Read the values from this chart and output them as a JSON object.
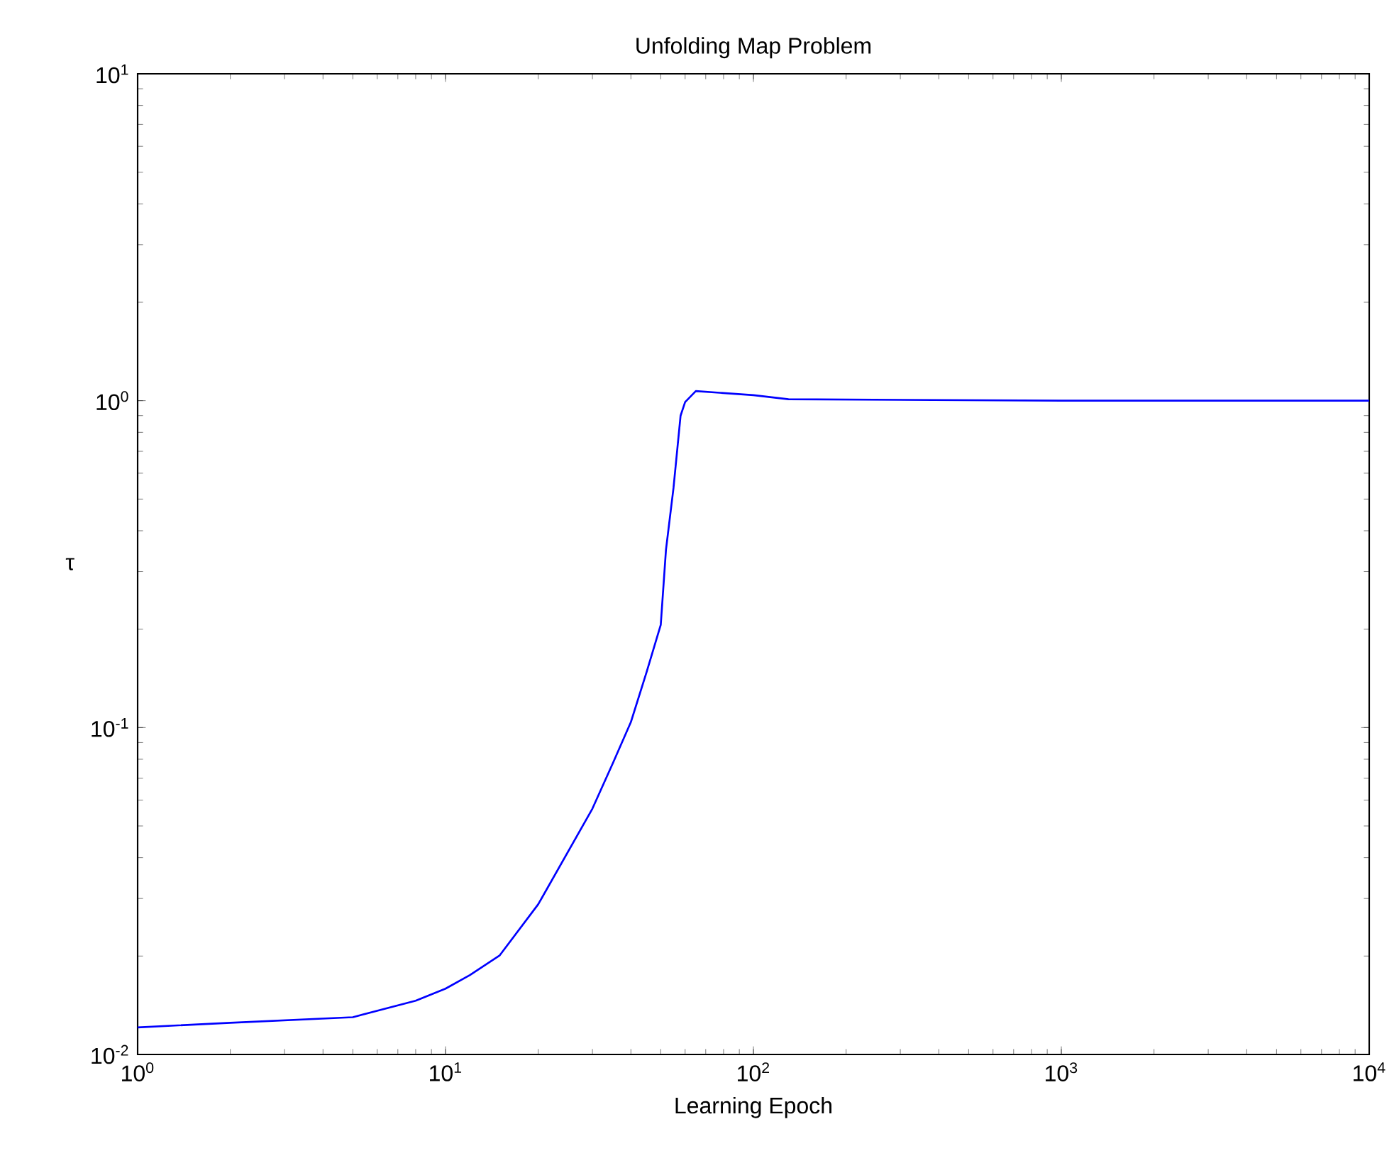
{
  "chart_data": {
    "type": "line",
    "title": "Unfolding Map Problem",
    "xlabel": "Learning Epoch",
    "ylabel": "τ",
    "log": "xy",
    "grid": false,
    "marker": "none",
    "line_style": "solid",
    "xlim": [
      1,
      10000
    ],
    "ylim": [
      0.01,
      10
    ],
    "xticks": [
      {
        "value": 1,
        "label": "10$^{0}$"
      },
      {
        "value": 10,
        "label": "10$^{1}$"
      },
      {
        "value": 100,
        "label": "10$^{2}$"
      },
      {
        "value": 1000,
        "label": "10$^{3}$"
      },
      {
        "value": 10000,
        "label": "10$^{4}$"
      }
    ],
    "yticks": [
      {
        "value": 0.01,
        "label": "10$^{-2}$"
      },
      {
        "value": 0.1,
        "label": "10$^{-1}$"
      },
      {
        "value": 1,
        "label": "10$^{0}$"
      },
      {
        "value": 10,
        "label": "10$^{1}$"
      }
    ],
    "x": [
      1,
      2,
      5,
      8,
      10,
      12,
      15,
      20,
      30,
      35,
      40,
      45,
      50,
      52,
      55,
      58,
      60,
      65,
      100,
      130,
      1000,
      10000
    ],
    "series": [
      {
        "color": "#0000ff",
        "values": [
          0.0121,
          0.0125,
          0.013,
          0.0146,
          0.0159,
          0.0175,
          0.0201,
          0.0288,
          0.0565,
          0.078,
          0.104,
          0.148,
          0.206,
          0.35,
          0.54,
          0.9,
          0.99,
          1.07,
          1.04,
          1.01,
          1.0,
          1.0
        ]
      }
    ]
  }
}
